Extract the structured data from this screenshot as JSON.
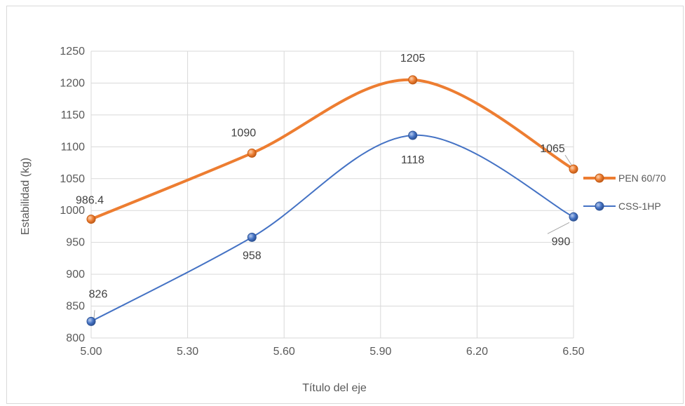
{
  "chart_data": {
    "type": "line",
    "title": "",
    "xlabel": "Título del eje",
    "ylabel": "Estabilidad (kg)",
    "x": [
      5.0,
      5.5,
      6.0,
      6.5
    ],
    "x_ticks": [
      "5.00",
      "5.30",
      "5.60",
      "5.90",
      "6.20",
      "6.50"
    ],
    "y_ticks": [
      "800",
      "850",
      "900",
      "950",
      "1000",
      "1050",
      "1100",
      "1150",
      "1200",
      "1250"
    ],
    "xlim": [
      5.0,
      6.5
    ],
    "ylim": [
      800,
      1250
    ],
    "grid": true,
    "smooth": true,
    "legend_position": "right",
    "series": [
      {
        "name": "PEN 60/70",
        "color": "#ED7D31",
        "values": [
          986.4,
          1090,
          1205,
          1065
        ],
        "labels": [
          "986.4",
          "1090",
          "1205",
          "1065"
        ]
      },
      {
        "name": "CSS-1HP",
        "color": "#4472C4",
        "values": [
          826,
          958,
          1118,
          990
        ],
        "labels": [
          "826",
          "958",
          "1118",
          "990"
        ]
      }
    ]
  }
}
